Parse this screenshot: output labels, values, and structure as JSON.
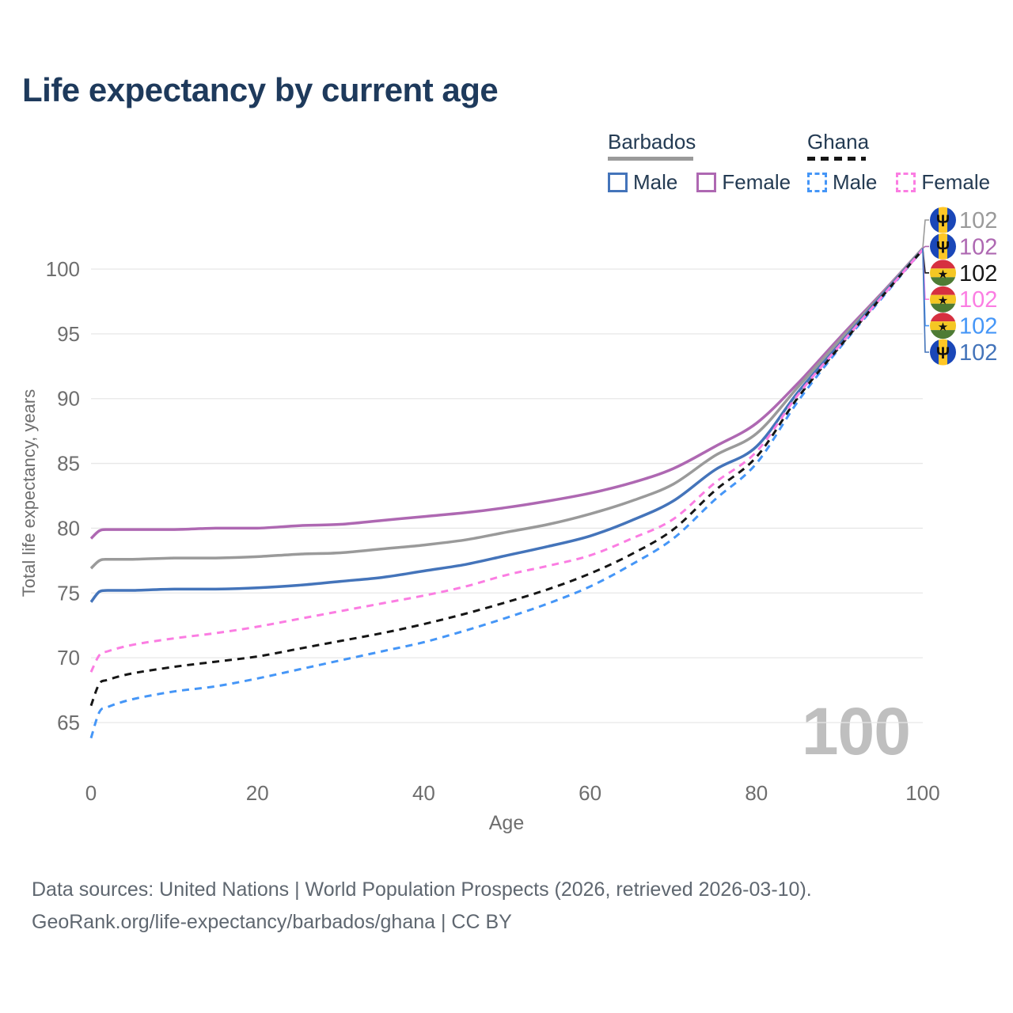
{
  "title": "Life expectancy by current age",
  "legend": {
    "groups": [
      {
        "name": "Barbados",
        "series_id": "barbados-total",
        "underline_style": "solid",
        "items": [
          {
            "label": "Male",
            "series_id": "barbados-male"
          },
          {
            "label": "Female",
            "series_id": "barbados-female"
          }
        ]
      },
      {
        "name": "Ghana",
        "series_id": "ghana-total",
        "underline_style": "dashed",
        "items": [
          {
            "label": "Male",
            "series_id": "ghana-male"
          },
          {
            "label": "Female",
            "series_id": "ghana-female"
          }
        ]
      }
    ]
  },
  "chart_data": {
    "type": "line",
    "title": "Life expectancy by current age",
    "xlabel": "Age",
    "ylabel": "Total life expectancy, years",
    "xlim": [
      0,
      100
    ],
    "ylim": [
      65,
      100
    ],
    "x_ticks": [
      0,
      20,
      40,
      60,
      80,
      100
    ],
    "y_ticks": [
      65,
      70,
      75,
      80,
      85,
      90,
      95,
      100
    ],
    "grid": "horizontal",
    "legend_position": "top-right",
    "ages": [
      0,
      1,
      2,
      5,
      10,
      15,
      20,
      25,
      30,
      35,
      40,
      45,
      50,
      55,
      60,
      65,
      70,
      75,
      80,
      85,
      90,
      95,
      100
    ],
    "series": [
      {
        "id": "barbados-female",
        "name": "Barbados Female",
        "country": "Barbados",
        "group": "Female",
        "color": "#ae68b2",
        "dashed": false,
        "end_value_label": "102",
        "values": [
          79.2,
          79.8,
          79.9,
          79.9,
          79.9,
          80.0,
          80.0,
          80.2,
          80.3,
          80.6,
          80.9,
          81.2,
          81.6,
          82.1,
          82.7,
          83.5,
          84.6,
          86.3,
          88.1,
          91.2,
          94.7,
          98.1,
          101.6
        ]
      },
      {
        "id": "barbados-total",
        "name": "Barbados",
        "country": "Barbados",
        "group": "Both sexes",
        "color": "#9a9a9a",
        "dashed": false,
        "end_value_label": "102",
        "values": [
          76.9,
          77.5,
          77.6,
          77.6,
          77.7,
          77.7,
          77.8,
          78.0,
          78.1,
          78.4,
          78.7,
          79.1,
          79.7,
          80.3,
          81.1,
          82.1,
          83.4,
          85.6,
          87.3,
          90.9,
          94.5,
          98.0,
          101.6
        ]
      },
      {
        "id": "barbados-male",
        "name": "Barbados Male",
        "country": "Barbados",
        "group": "Male",
        "color": "#4474ba",
        "dashed": false,
        "end_value_label": "102",
        "values": [
          74.3,
          75.1,
          75.2,
          75.2,
          75.3,
          75.3,
          75.4,
          75.6,
          75.9,
          76.2,
          76.7,
          77.2,
          77.9,
          78.6,
          79.4,
          80.6,
          82.1,
          84.5,
          86.3,
          90.5,
          94.2,
          97.9,
          101.5
        ]
      },
      {
        "id": "ghana-male",
        "name": "Ghana Male",
        "country": "Ghana",
        "group": "Male",
        "color": "#4596f7",
        "dashed": true,
        "end_value_label": "102",
        "values": [
          63.8,
          65.8,
          66.2,
          66.8,
          67.4,
          67.8,
          68.4,
          69.1,
          69.8,
          70.5,
          71.2,
          72.1,
          73.1,
          74.2,
          75.5,
          77.2,
          79.2,
          82.2,
          85.0,
          89.8,
          93.9,
          97.7,
          101.5
        ]
      },
      {
        "id": "ghana-total",
        "name": "Ghana",
        "country": "Ghana",
        "group": "Both sexes",
        "color": "#161616",
        "dashed": true,
        "end_value_label": "102",
        "values": [
          66.3,
          68.0,
          68.3,
          68.8,
          69.3,
          69.7,
          70.1,
          70.7,
          71.3,
          71.9,
          72.6,
          73.4,
          74.3,
          75.3,
          76.5,
          78.0,
          79.9,
          82.9,
          85.5,
          90.1,
          94.0,
          97.8,
          101.5
        ]
      },
      {
        "id": "ghana-female",
        "name": "Ghana Female",
        "country": "Ghana",
        "group": "Female",
        "color": "#fb7de2",
        "dashed": true,
        "end_value_label": "102",
        "values": [
          68.9,
          70.2,
          70.5,
          71.0,
          71.5,
          71.9,
          72.4,
          73.0,
          73.6,
          74.2,
          74.8,
          75.5,
          76.4,
          77.1,
          77.9,
          79.2,
          80.7,
          83.5,
          85.9,
          90.3,
          94.1,
          97.8,
          101.5
        ]
      }
    ],
    "end_label_order": [
      "barbados-total",
      "barbados-female",
      "ghana-total",
      "ghana-female",
      "ghana-male",
      "barbados-male"
    ],
    "flags": {
      "barbados": {
        "type": "vertical-triband",
        "colors": [
          "#1a47b8",
          "#ffc726",
          "#1a47b8"
        ],
        "emblem": "Ψ"
      },
      "ghana": {
        "type": "horizontal-triband",
        "colors": [
          "#d63040",
          "#f5c723",
          "#4e7b34"
        ],
        "emblem": "★"
      }
    }
  },
  "watermark_age": "100",
  "footer": {
    "line1": "Data sources: United Nations | World Population Prospects (2026, retrieved 2026-03-10).",
    "line2": "GeoRank.org/life-expectancy/barbados/ghana | CC BY"
  },
  "colors": {
    "title_text": "#1e3a5c",
    "axis_text": "#6e6e6e",
    "gridline": "#e7e7e7",
    "watermark": "#bfbfbf",
    "footer_text": "#5f6770"
  }
}
